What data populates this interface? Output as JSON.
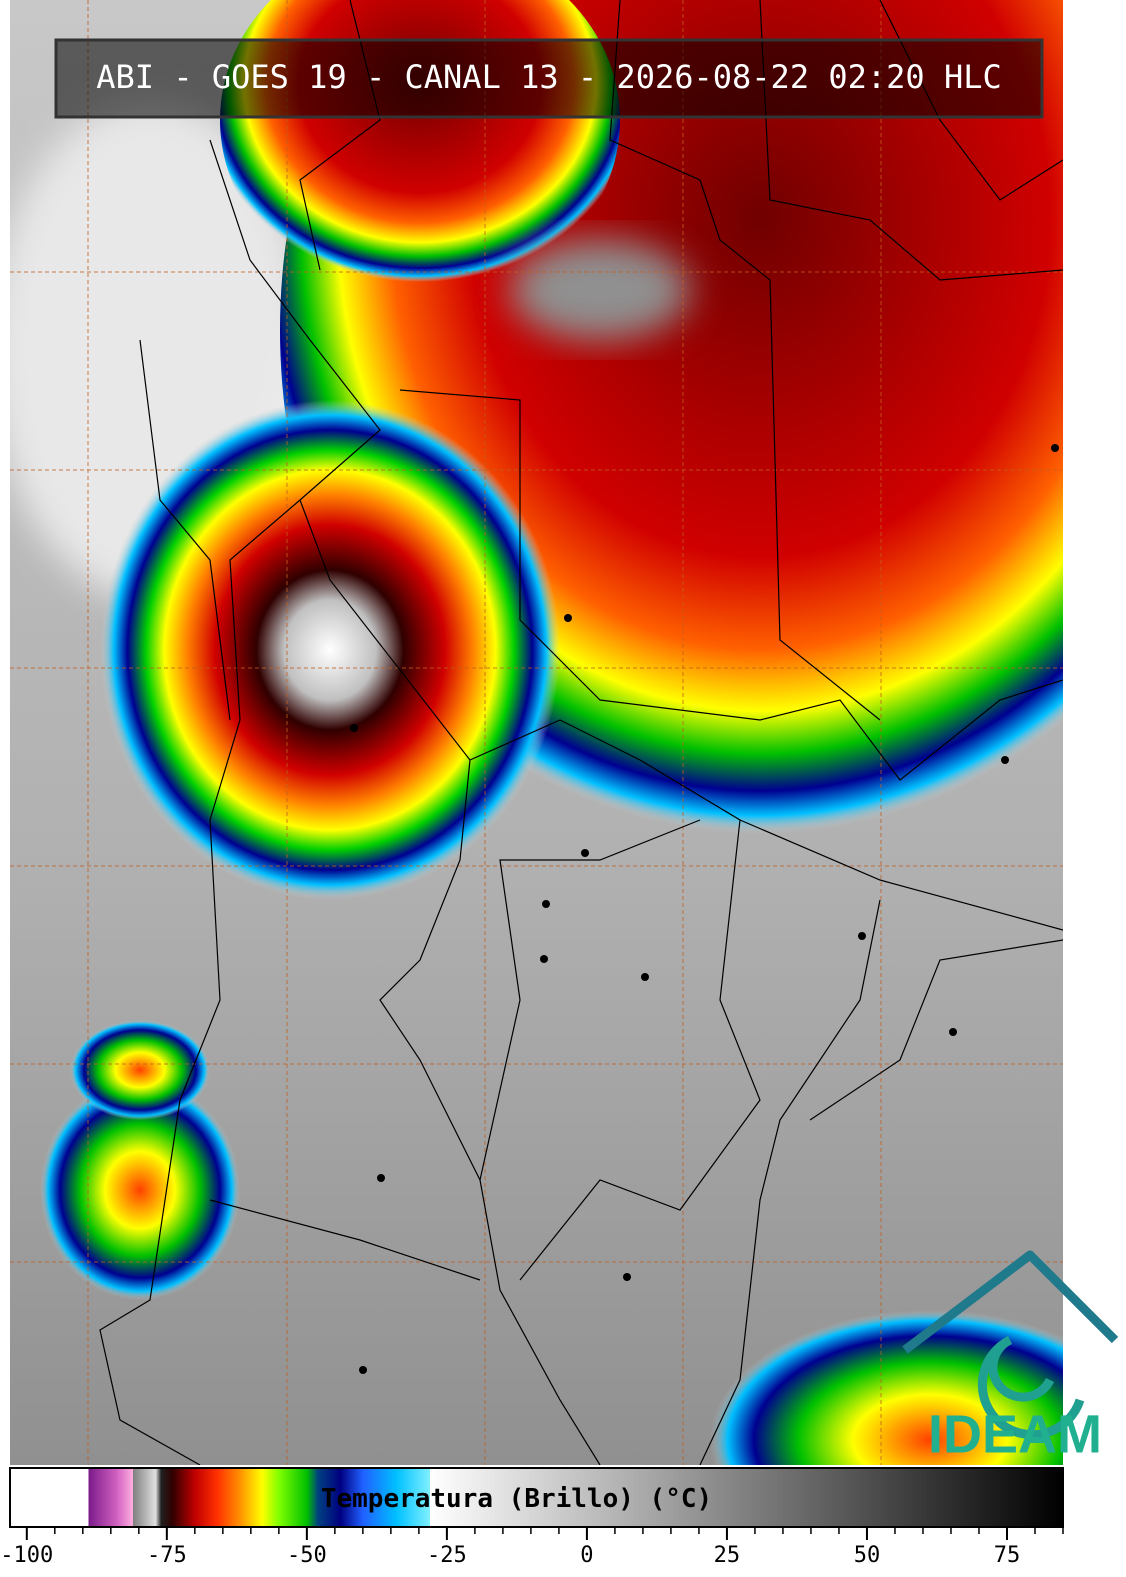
{
  "header": {
    "title": "ABI - GOES 19 - CANAL 13 - 2026-08-22 02:20 HLC"
  },
  "logo": {
    "text": "IDEAM"
  },
  "chart_data": {
    "type": "colorbar",
    "label": "Temperatura (Brillo) (°C)",
    "xlim": [
      -103,
      85
    ],
    "xticks": [
      -100,
      -75,
      -50,
      -25,
      0,
      25,
      50,
      75
    ],
    "colorscale": [
      [
        -103,
        "#ffffff"
      ],
      [
        -89,
        "#ffffff"
      ],
      [
        -89,
        "#7a1a8a"
      ],
      [
        -84,
        "#d060c0"
      ],
      [
        -81,
        "#ffb0e0"
      ],
      [
        -81,
        "#808080"
      ],
      [
        -77,
        "#e0e0e0"
      ],
      [
        -76,
        "#202020"
      ],
      [
        -74,
        "#300000"
      ],
      [
        -70,
        "#c00000"
      ],
      [
        -66,
        "#ff3000"
      ],
      [
        -62,
        "#ff9000"
      ],
      [
        -58,
        "#ffff00"
      ],
      [
        -55,
        "#80ff00"
      ],
      [
        -50,
        "#00c000"
      ],
      [
        -48,
        "#004080"
      ],
      [
        -44,
        "#000080"
      ],
      [
        -40,
        "#2060ff"
      ],
      [
        -34,
        "#00c0ff"
      ],
      [
        -28,
        "#80f0ff"
      ],
      [
        -28,
        "#ffffff"
      ],
      [
        85,
        "#000000"
      ]
    ]
  }
}
